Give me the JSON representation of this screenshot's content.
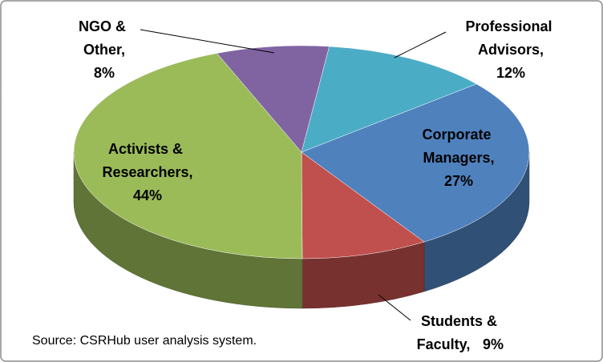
{
  "chart_data": {
    "type": "pie",
    "categories": [
      "Professional Advisors,",
      "Corporate Managers,",
      "Students & Faculty,",
      "Activists & Researchers,",
      "NGO & Other,"
    ],
    "values": [
      12,
      27,
      9,
      44,
      8
    ],
    "value_labels": [
      "12%",
      "27%",
      "9%",
      "44%",
      "8%"
    ],
    "colors": [
      "#4bacc6",
      "#4f81bd",
      "#c0504d",
      "#9bbb59",
      "#8064a2"
    ],
    "source": "Source: CSRHub user analysis system."
  }
}
